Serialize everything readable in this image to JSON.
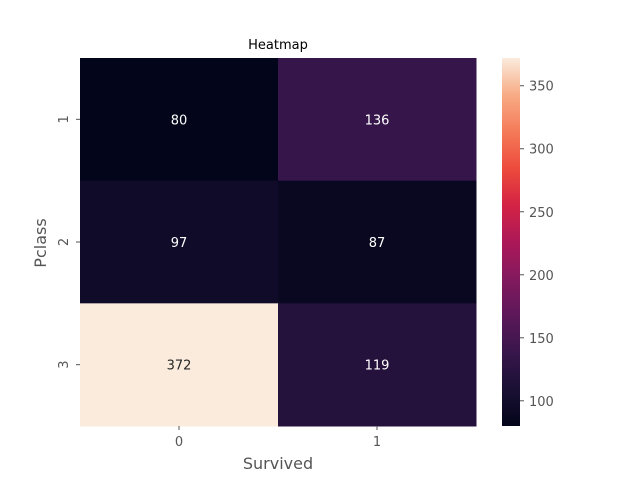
{
  "chart_data": {
    "type": "heatmap",
    "title": "Heatmap",
    "xlabel": "Survived",
    "ylabel": "Pclass",
    "x_categories": [
      "0",
      "1"
    ],
    "y_categories": [
      "1",
      "2",
      "3"
    ],
    "values": [
      [
        80,
        136
      ],
      [
        97,
        87
      ],
      [
        372,
        119
      ]
    ],
    "colormap": "rocket",
    "colorbar": {
      "min": 80,
      "max": 372,
      "ticks": [
        100,
        150,
        200,
        250,
        300,
        350
      ],
      "tick_labels": [
        "100",
        "150",
        "200",
        "250",
        "300",
        "350"
      ]
    },
    "grid": false
  }
}
